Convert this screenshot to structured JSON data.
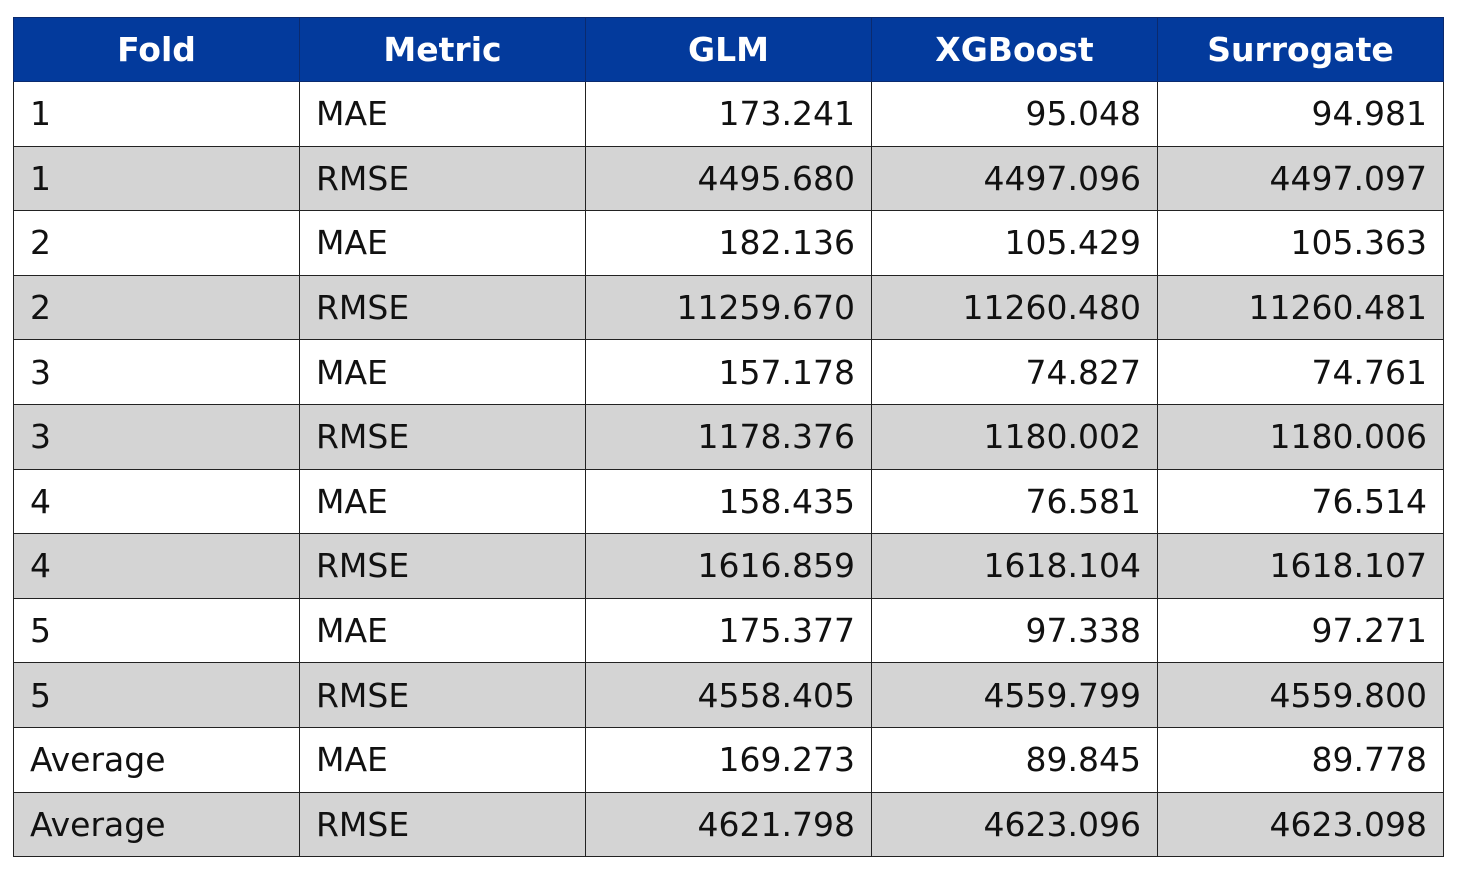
{
  "table": {
    "header": [
      "Fold",
      "Metric",
      "GLM",
      "XGBoost",
      "Surrogate"
    ],
    "rows": [
      [
        "1",
        "MAE",
        "173.241",
        "95.048",
        "94.981"
      ],
      [
        "1",
        "RMSE",
        "4495.680",
        "4497.096",
        "4497.097"
      ],
      [
        "2",
        "MAE",
        "182.136",
        "105.429",
        "105.363"
      ],
      [
        "2",
        "RMSE",
        "11259.670",
        "11260.480",
        "11260.481"
      ],
      [
        "3",
        "MAE",
        "157.178",
        "74.827",
        "74.761"
      ],
      [
        "3",
        "RMSE",
        "1178.376",
        "1180.002",
        "1180.006"
      ],
      [
        "4",
        "MAE",
        "158.435",
        "76.581",
        "76.514"
      ],
      [
        "4",
        "RMSE",
        "1616.859",
        "1618.104",
        "1618.107"
      ],
      [
        "5",
        "MAE",
        "175.377",
        "97.338",
        "97.271"
      ],
      [
        "5",
        "RMSE",
        "4558.405",
        "4559.799",
        "4559.800"
      ],
      [
        "Average",
        "MAE",
        "169.273",
        "89.845",
        "89.778"
      ],
      [
        "Average",
        "RMSE",
        "4621.798",
        "4623.096",
        "4623.098"
      ]
    ]
  }
}
